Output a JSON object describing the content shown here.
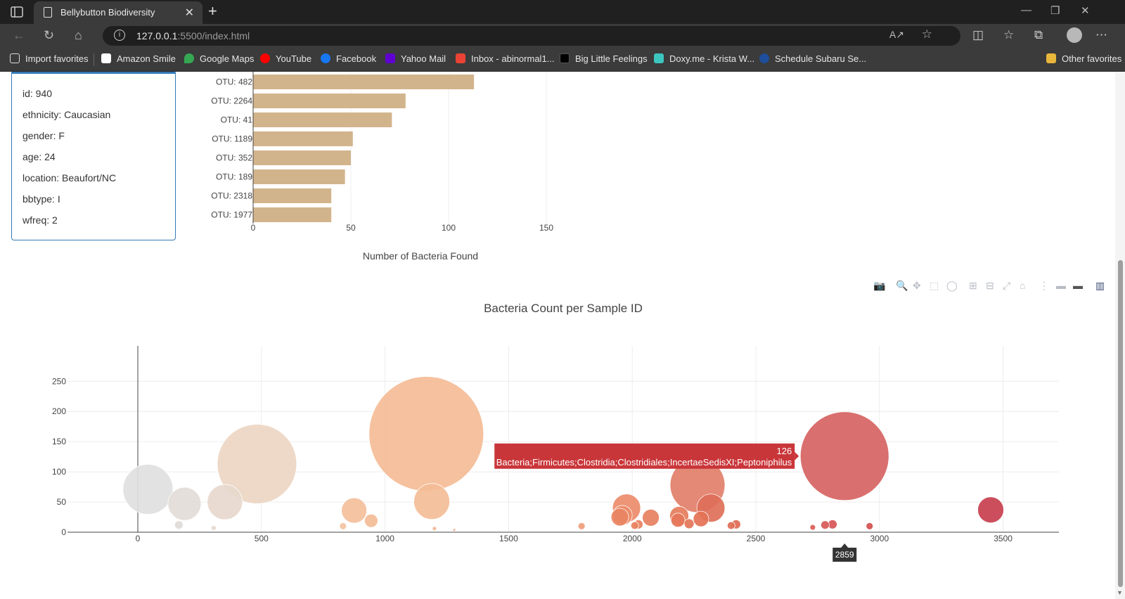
{
  "browser": {
    "tab_title": "Bellybutton Biodiversity",
    "url_host": "127.0.0.1",
    "url_rest": ":5500/index.html",
    "bookmarks": [
      {
        "label": "Import favorites",
        "icon": "import-icon",
        "color": "#e6e6e6"
      },
      {
        "label": "Amazon Smile",
        "icon": "amazon-icon",
        "color": "#ffffff"
      },
      {
        "label": "Google Maps",
        "icon": "maps-icon",
        "color": "#34a853"
      },
      {
        "label": "YouTube",
        "icon": "youtube-icon",
        "color": "#ff0000"
      },
      {
        "label": "Facebook",
        "icon": "facebook-icon",
        "color": "#1877f2"
      },
      {
        "label": "Yahoo Mail",
        "icon": "yahoo-icon",
        "color": "#6001d2"
      },
      {
        "label": "Inbox - abinormal1...",
        "icon": "gmail-icon",
        "color": "#ea4335"
      },
      {
        "label": "Big Little Feelings",
        "icon": "blf-icon",
        "color": "#000000"
      },
      {
        "label": "Doxy.me - Krista W...",
        "icon": "doxy-icon",
        "color": "#3cc6c0"
      },
      {
        "label": "Schedule Subaru Se...",
        "icon": "subaru-icon",
        "color": "#1e4e9c"
      }
    ],
    "other_favorites": "Other favorites"
  },
  "metadata": [
    "id: 940",
    "ethnicity: Caucasian",
    "gender: F",
    "age: 24",
    "location: Beaufort/NC",
    "bbtype: I",
    "wfreq: 2"
  ],
  "chart_data": [
    {
      "type": "bar",
      "orientation": "horizontal",
      "categories": [
        "OTU: 482",
        "OTU: 2264",
        "OTU: 41",
        "OTU: 1189",
        "OTU: 352",
        "OTU: 189",
        "OTU: 2318",
        "OTU: 1977"
      ],
      "values": [
        113,
        78,
        71,
        51,
        50,
        47,
        40,
        40
      ],
      "xlabel": "Number of Bacteria Found",
      "xticks": [
        0,
        50,
        100,
        150
      ],
      "xlim": [
        0,
        150
      ],
      "color": "#d2b48c"
    },
    {
      "type": "scatter",
      "title": "Bacteria Count per Sample ID",
      "xticks": [
        0,
        500,
        1000,
        1500,
        2000,
        2500,
        3000,
        3500
      ],
      "yticks": [
        0,
        50,
        100,
        150,
        200,
        250
      ],
      "xlim": [
        -290,
        3710
      ],
      "ylim": [
        -5,
        297
      ],
      "points": [
        {
          "x": 41,
          "y": 71,
          "color": "#e0e0e0"
        },
        {
          "x": 189,
          "y": 47,
          "color": "#e3ddd8"
        },
        {
          "x": 352,
          "y": 50,
          "color": "#e8d9ce"
        },
        {
          "x": 482,
          "y": 113,
          "color": "#edd6c4"
        },
        {
          "x": 166,
          "y": 12,
          "color": "#e0dcd8"
        },
        {
          "x": 307,
          "y": 7,
          "color": "#e6d9cf"
        },
        {
          "x": 830,
          "y": 10,
          "color": "#f2c4a2"
        },
        {
          "x": 875,
          "y": 36,
          "color": "#f4c09c"
        },
        {
          "x": 944,
          "y": 19,
          "color": "#f4bc96"
        },
        {
          "x": 1167,
          "y": 163,
          "color": "#f5bc96"
        },
        {
          "x": 1189,
          "y": 51,
          "color": "#f5bd97"
        },
        {
          "x": 1200,
          "y": 6,
          "color": "#f3b893"
        },
        {
          "x": 1280,
          "y": 4,
          "color": "#f2b590"
        },
        {
          "x": 1795,
          "y": 10,
          "color": "#ef9e7a"
        },
        {
          "x": 1977,
          "y": 40,
          "color": "#ec8d6b"
        },
        {
          "x": 1960,
          "y": 28,
          "color": "#ec8c6a"
        },
        {
          "x": 1950,
          "y": 25,
          "color": "#e98562"
        },
        {
          "x": 2010,
          "y": 11,
          "color": "#e9825f"
        },
        {
          "x": 2025,
          "y": 13,
          "color": "#e9825f"
        },
        {
          "x": 2075,
          "y": 24,
          "color": "#e88160"
        },
        {
          "x": 2190,
          "y": 27,
          "color": "#e67c5c"
        },
        {
          "x": 2185,
          "y": 20,
          "color": "#e6785a"
        },
        {
          "x": 2230,
          "y": 14,
          "color": "#e47659"
        },
        {
          "x": 2264,
          "y": 78,
          "color": "#e1806a"
        },
        {
          "x": 2278,
          "y": 22,
          "color": "#e47356"
        },
        {
          "x": 2318,
          "y": 40,
          "color": "#df705a"
        },
        {
          "x": 2400,
          "y": 11,
          "color": "#e06e55"
        },
        {
          "x": 2420,
          "y": 13,
          "color": "#e06b54"
        },
        {
          "x": 2730,
          "y": 8,
          "color": "#d95d57"
        },
        {
          "x": 2780,
          "y": 12,
          "color": "#d85858"
        },
        {
          "x": 2810,
          "y": 13,
          "color": "#d75557"
        },
        {
          "x": 2859,
          "y": 126,
          "color": "#d66362"
        },
        {
          "x": 2960,
          "y": 10,
          "color": "#d45050"
        },
        {
          "x": 3450,
          "y": 37,
          "color": "#c8404f"
        }
      ],
      "hover": {
        "value": "126",
        "label": "Bacteria;Firmicutes;Clostridia;Clostridiales;IncertaeSedisXI;Peptoniphilus",
        "x_label": "2859",
        "color": "#c9363a"
      }
    }
  ]
}
